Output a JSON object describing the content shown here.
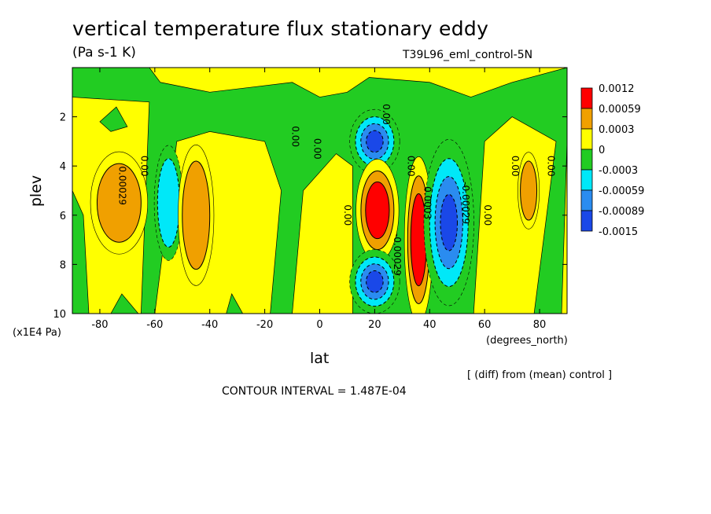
{
  "title": "vertical temperature flux stationary eddy",
  "units": "(Pa s-1 K)",
  "run_label": "T39L96_eml_control-5N",
  "note": "[ (diff) from (mean) control ]",
  "contour_interval": "CONTOUR INTERVAL = 1.487E-04",
  "chart_data": {
    "type": "heatmap",
    "title": "vertical temperature flux stationary eddy",
    "xlabel": "lat",
    "xunit": "(degrees_north)",
    "ylabel": "plev",
    "yunit": "(x1E4 Pa)",
    "xlim": [
      -90,
      90
    ],
    "ylim": [
      10,
      0
    ],
    "x_ticks": [
      "-80",
      "-60",
      "-40",
      "-20",
      "0",
      "20",
      "40",
      "60",
      "80"
    ],
    "y_ticks": [
      "2",
      "4",
      "6",
      "8",
      "10"
    ],
    "colorbar": {
      "labels": [
        "0.0012",
        "0.00059",
        "0.0003",
        "0",
        "-0.0003",
        "-0.00059",
        "-0.00089",
        "-0.0015"
      ],
      "colors": [
        "#ff0000",
        "#f0a000",
        "#ffff00",
        "#22cc22",
        "#00e8f8",
        "#2a8cf0",
        "#1a48e8"
      ]
    },
    "contour_labels": [
      {
        "text": "0.00",
        "lat": -10,
        "plev": 2.8
      },
      {
        "text": "0.00",
        "lat": -2,
        "plev": 3.3
      },
      {
        "text": "0.00",
        "lat": 23,
        "plev": 1.9
      },
      {
        "text": "0.00",
        "lat": -65,
        "plev": 4.0
      },
      {
        "text": "0.00029",
        "lat": -73,
        "plev": 4.8
      },
      {
        "text": "0.00",
        "lat": 9,
        "plev": 6.0
      },
      {
        "text": "0.00",
        "lat": 32,
        "plev": 4.0
      },
      {
        "text": "0.0003",
        "lat": 38,
        "plev": 5.5
      },
      {
        "text": "-0.00029",
        "lat": 27,
        "plev": 7.6
      },
      {
        "text": "-0.00029",
        "lat": 52,
        "plev": 5.5
      },
      {
        "text": "0.00",
        "lat": 60,
        "plev": 6.0
      },
      {
        "text": "0.00",
        "lat": 70,
        "plev": 4.0
      },
      {
        "text": "0.00",
        "lat": 83,
        "plev": 4.0
      }
    ],
    "features": [
      {
        "sign": "positive",
        "lat": -73,
        "plev": 5.5,
        "peak": 0.00045
      },
      {
        "sign": "negative",
        "lat": -55,
        "plev": 5.5,
        "peak": -0.00035
      },
      {
        "sign": "positive",
        "lat": -45,
        "plev": 6.0,
        "peak": 0.00045
      },
      {
        "sign": "negative",
        "lat": 20,
        "plev": 3.0,
        "peak": -0.0009
      },
      {
        "sign": "positive",
        "lat": 21,
        "plev": 5.8,
        "peak": 0.0012
      },
      {
        "sign": "negative",
        "lat": 20,
        "plev": 8.7,
        "peak": -0.0009
      },
      {
        "sign": "positive",
        "lat": 36,
        "plev": 7.0,
        "peak": 0.0012
      },
      {
        "sign": "negative",
        "lat": 47,
        "plev": 6.3,
        "peak": -0.0009
      },
      {
        "sign": "positive",
        "lat": 76,
        "plev": 5.0,
        "peak": 0.0004
      }
    ]
  }
}
